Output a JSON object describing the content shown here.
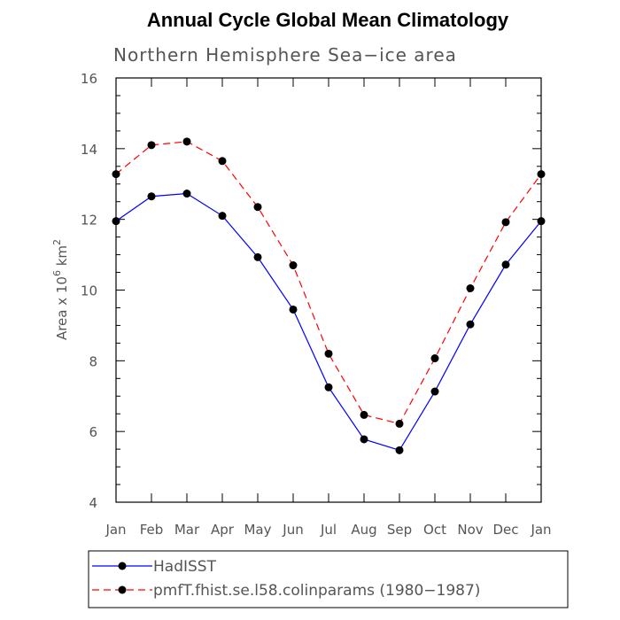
{
  "chart_data": {
    "type": "line",
    "title": "Annual Cycle Global Mean Climatology",
    "subtitle": "Northern Hemisphere Sea−ice area",
    "ylabel": {
      "prefix": "Area x 10",
      "sup1": "6",
      "mid": " km",
      "sup2": "2"
    },
    "xlabel": "",
    "categories": [
      "Jan",
      "Feb",
      "Mar",
      "Apr",
      "May",
      "Jun",
      "Jul",
      "Aug",
      "Sep",
      "Oct",
      "Nov",
      "Dec",
      "Jan"
    ],
    "ylim": [
      4,
      16
    ],
    "yticks": [
      4,
      6,
      8,
      10,
      12,
      14,
      16
    ],
    "series": [
      {
        "name": "HadISST",
        "color": "#0000ff",
        "dash": "solid",
        "values": [
          11.95,
          12.65,
          12.73,
          12.1,
          10.93,
          9.45,
          7.25,
          5.78,
          5.47,
          7.13,
          9.03,
          10.72,
          11.95
        ]
      },
      {
        "name": "pmfT.fhist.se.l58.colinparams (1980−1987)",
        "color": "#ff0000",
        "dash": "dashed",
        "values": [
          13.28,
          14.1,
          14.2,
          13.65,
          12.35,
          10.7,
          8.2,
          6.47,
          6.22,
          8.07,
          10.05,
          11.92,
          13.28
        ]
      }
    ],
    "legend_placement": "bottom"
  }
}
